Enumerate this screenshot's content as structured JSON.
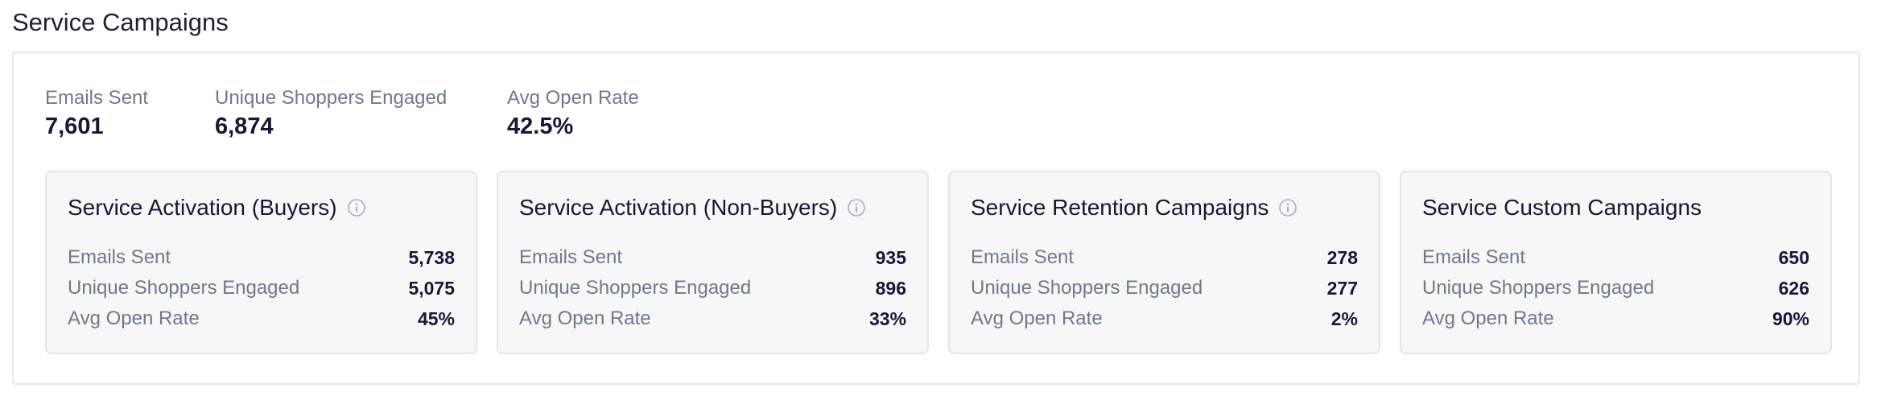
{
  "page": {
    "title": "Service Campaigns"
  },
  "summary": [
    {
      "label": "Emails Sent",
      "value": "7,601"
    },
    {
      "label": "Unique Shoppers Engaged",
      "value": "6,874"
    },
    {
      "label": "Avg Open Rate",
      "value": "42.5%"
    }
  ],
  "cards": [
    {
      "title": "Service Activation (Buyers)",
      "has_info_icon": true,
      "metrics": [
        {
          "label": "Emails Sent",
          "value": "5,738"
        },
        {
          "label": "Unique Shoppers Engaged",
          "value": "5,075"
        },
        {
          "label": "Avg Open Rate",
          "value": "45%"
        }
      ]
    },
    {
      "title": "Service Activation (Non-Buyers)",
      "has_info_icon": true,
      "metrics": [
        {
          "label": "Emails Sent",
          "value": "935"
        },
        {
          "label": "Unique Shoppers Engaged",
          "value": "896"
        },
        {
          "label": "Avg Open Rate",
          "value": "33%"
        }
      ]
    },
    {
      "title": "Service Retention Campaigns",
      "has_info_icon": true,
      "metrics": [
        {
          "label": "Emails Sent",
          "value": "278"
        },
        {
          "label": "Unique Shoppers Engaged",
          "value": "277"
        },
        {
          "label": "Avg Open Rate",
          "value": "2%"
        }
      ]
    },
    {
      "title": "Service Custom Campaigns",
      "has_info_icon": false,
      "metrics": [
        {
          "label": "Emails Sent",
          "value": "650"
        },
        {
          "label": "Unique Shoppers Engaged",
          "value": "626"
        },
        {
          "label": "Avg Open Rate",
          "value": "90%"
        }
      ]
    }
  ],
  "icons": {
    "info": "info-circle-icon"
  },
  "colors": {
    "text_primary": "#14193a",
    "text_muted": "#6e7891",
    "card_background": "#f7f7f8",
    "border": "#e6e8ec"
  }
}
